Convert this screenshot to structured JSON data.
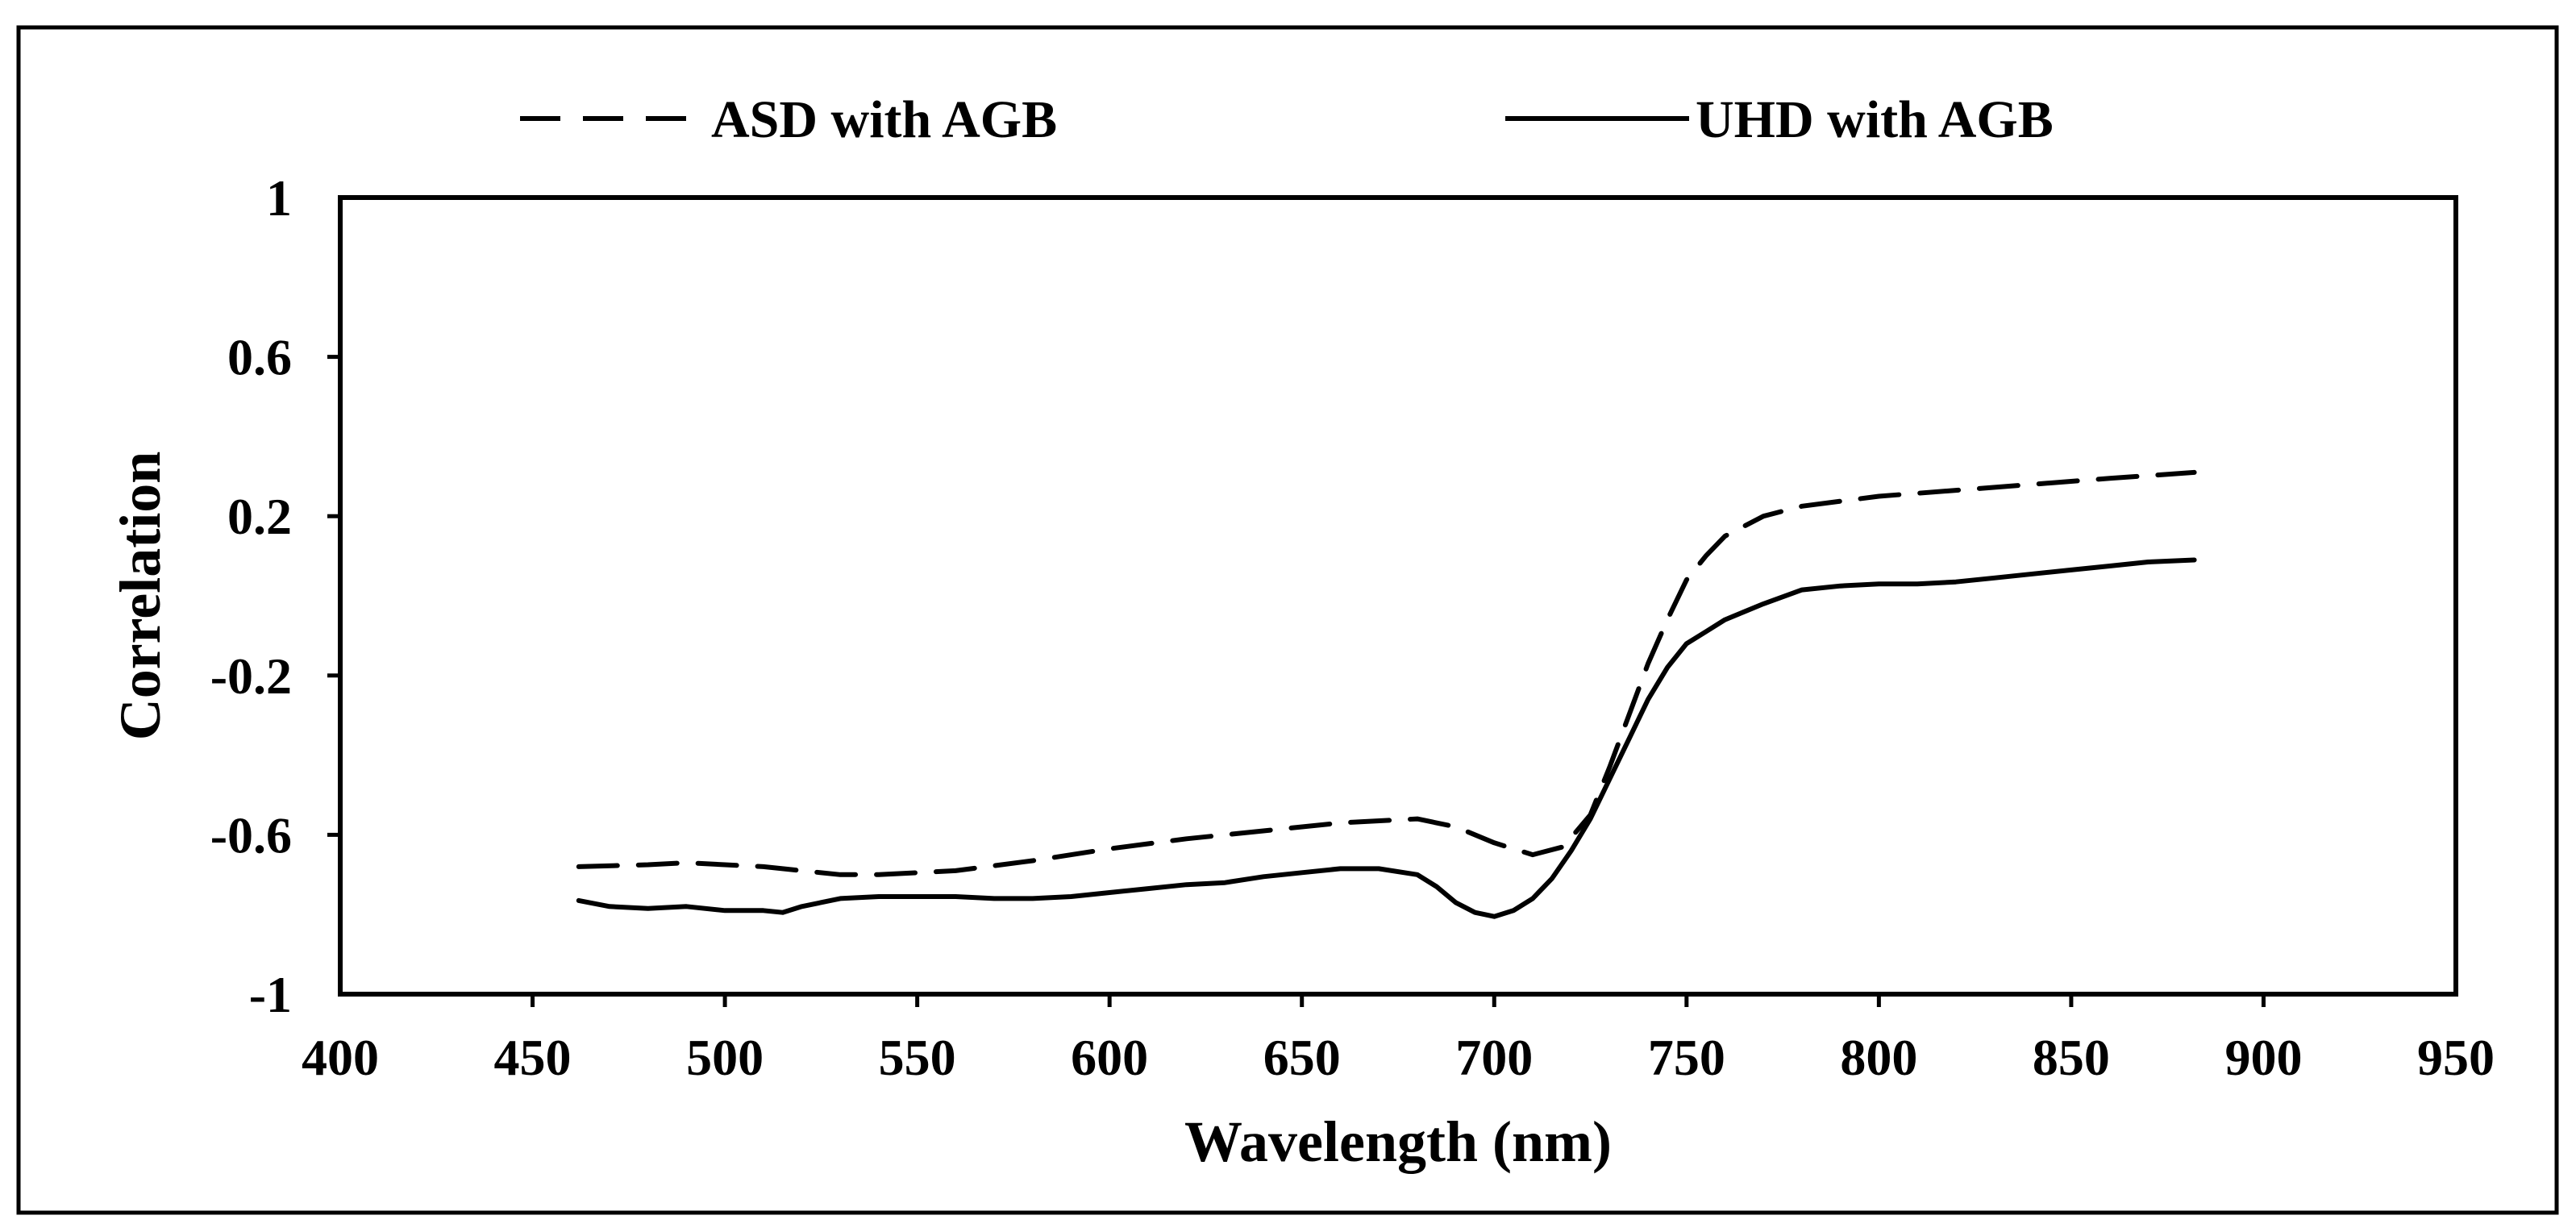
{
  "chart_data": {
    "type": "line",
    "xlabel": "Wavelength (nm)",
    "ylabel": "Correlation",
    "xlim": [
      400,
      950
    ],
    "ylim": [
      -1,
      1
    ],
    "x_ticks": [
      "400",
      "450",
      "500",
      "550",
      "600",
      "650",
      "700",
      "750",
      "800",
      "850",
      "900",
      "950"
    ],
    "y_ticks": [
      "1",
      "0.6",
      "0.2",
      "-0.2",
      "-0.6",
      "-1"
    ],
    "legend_position": "top",
    "grid": false,
    "series": [
      {
        "name": "ASD with AGB",
        "style": "dashed",
        "color": "#000000",
        "x": [
          462,
          480,
          490,
          500,
          510,
          520,
          530,
          540,
          560,
          580,
          600,
          620,
          640,
          660,
          680,
          690,
          700,
          710,
          718,
          725,
          730,
          735,
          740,
          745,
          750,
          755,
          760,
          770,
          780,
          800,
          820,
          840,
          860,
          882
        ],
        "y": [
          -0.68,
          -0.675,
          -0.67,
          -0.675,
          -0.68,
          -0.69,
          -0.7,
          -0.7,
          -0.69,
          -0.665,
          -0.635,
          -0.61,
          -0.59,
          -0.57,
          -0.56,
          -0.58,
          -0.62,
          -0.65,
          -0.63,
          -0.55,
          -0.43,
          -0.3,
          -0.17,
          -0.06,
          0.04,
          0.1,
          0.15,
          0.2,
          0.225,
          0.25,
          0.265,
          0.28,
          0.295,
          0.31
        ]
      },
      {
        "name": "UHD with AGB",
        "style": "solid",
        "color": "#000000",
        "x": [
          462,
          470,
          480,
          490,
          500,
          510,
          515,
          520,
          530,
          540,
          550,
          560,
          570,
          580,
          590,
          600,
          610,
          620,
          630,
          640,
          650,
          660,
          670,
          680,
          685,
          690,
          695,
          700,
          705,
          710,
          715,
          720,
          725,
          730,
          735,
          740,
          745,
          750,
          755,
          760,
          770,
          780,
          790,
          800,
          810,
          820,
          830,
          840,
          850,
          860,
          870,
          882
        ],
        "y": [
          -0.765,
          -0.78,
          -0.785,
          -0.78,
          -0.79,
          -0.79,
          -0.795,
          -0.78,
          -0.76,
          -0.755,
          -0.755,
          -0.755,
          -0.76,
          -0.76,
          -0.755,
          -0.745,
          -0.735,
          -0.725,
          -0.72,
          -0.705,
          -0.695,
          -0.685,
          -0.685,
          -0.7,
          -0.73,
          -0.77,
          -0.795,
          -0.805,
          -0.79,
          -0.76,
          -0.71,
          -0.64,
          -0.56,
          -0.46,
          -0.36,
          -0.26,
          -0.18,
          -0.12,
          -0.09,
          -0.06,
          -0.02,
          0.015,
          0.025,
          0.03,
          0.03,
          0.035,
          0.045,
          0.055,
          0.065,
          0.075,
          0.085,
          0.09
        ]
      }
    ]
  }
}
